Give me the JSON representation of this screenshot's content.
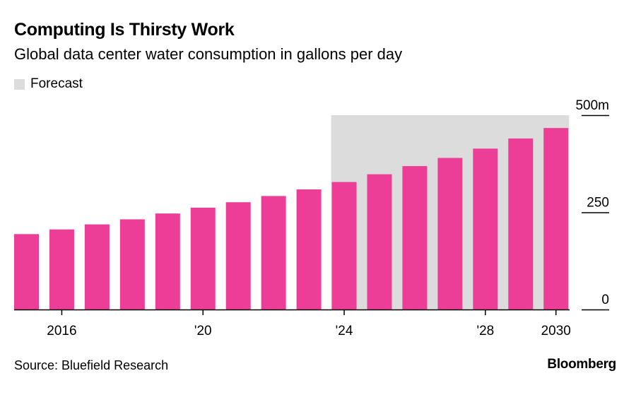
{
  "title": "Computing Is Thirsty Work",
  "subtitle": "Global data center water consumption in gallons per day",
  "legend": {
    "forecast_label": "Forecast",
    "forecast_color": "#dcdcdc"
  },
  "source": "Source: Bluefield Research",
  "logo": "Bloomberg",
  "bar_color": "#ec3e96",
  "chart_data": {
    "type": "bar",
    "title": "Computing Is Thirsty Work",
    "subtitle": "Global data center water consumption in gallons per day",
    "categories": [
      "2015",
      "2016",
      "2017",
      "2018",
      "2019",
      "2020",
      "2021",
      "2022",
      "2023",
      "2024",
      "2025",
      "2026",
      "2027",
      "2028",
      "2029",
      "2030"
    ],
    "values": [
      194,
      206,
      219,
      232,
      247,
      262,
      276,
      292,
      309,
      328,
      348,
      369,
      390,
      414,
      440,
      467
    ],
    "forecast_start": "2024",
    "forecast_end": "2030",
    "x_tick_labels": [
      {
        "category": "2016",
        "label": "2016"
      },
      {
        "category": "2020",
        "label": "'20"
      },
      {
        "category": "2024",
        "label": "'24"
      },
      {
        "category": "2028",
        "label": "'28"
      },
      {
        "category": "2030",
        "label": "2030"
      }
    ],
    "y_ticks": [
      {
        "value": 0,
        "label": "0"
      },
      {
        "value": 250,
        "label": "250"
      },
      {
        "value": 500,
        "label": "500m"
      }
    ],
    "ylim": [
      0,
      500
    ],
    "xlabel": "",
    "ylabel": "",
    "grid": false,
    "legend_position": "top-left"
  }
}
